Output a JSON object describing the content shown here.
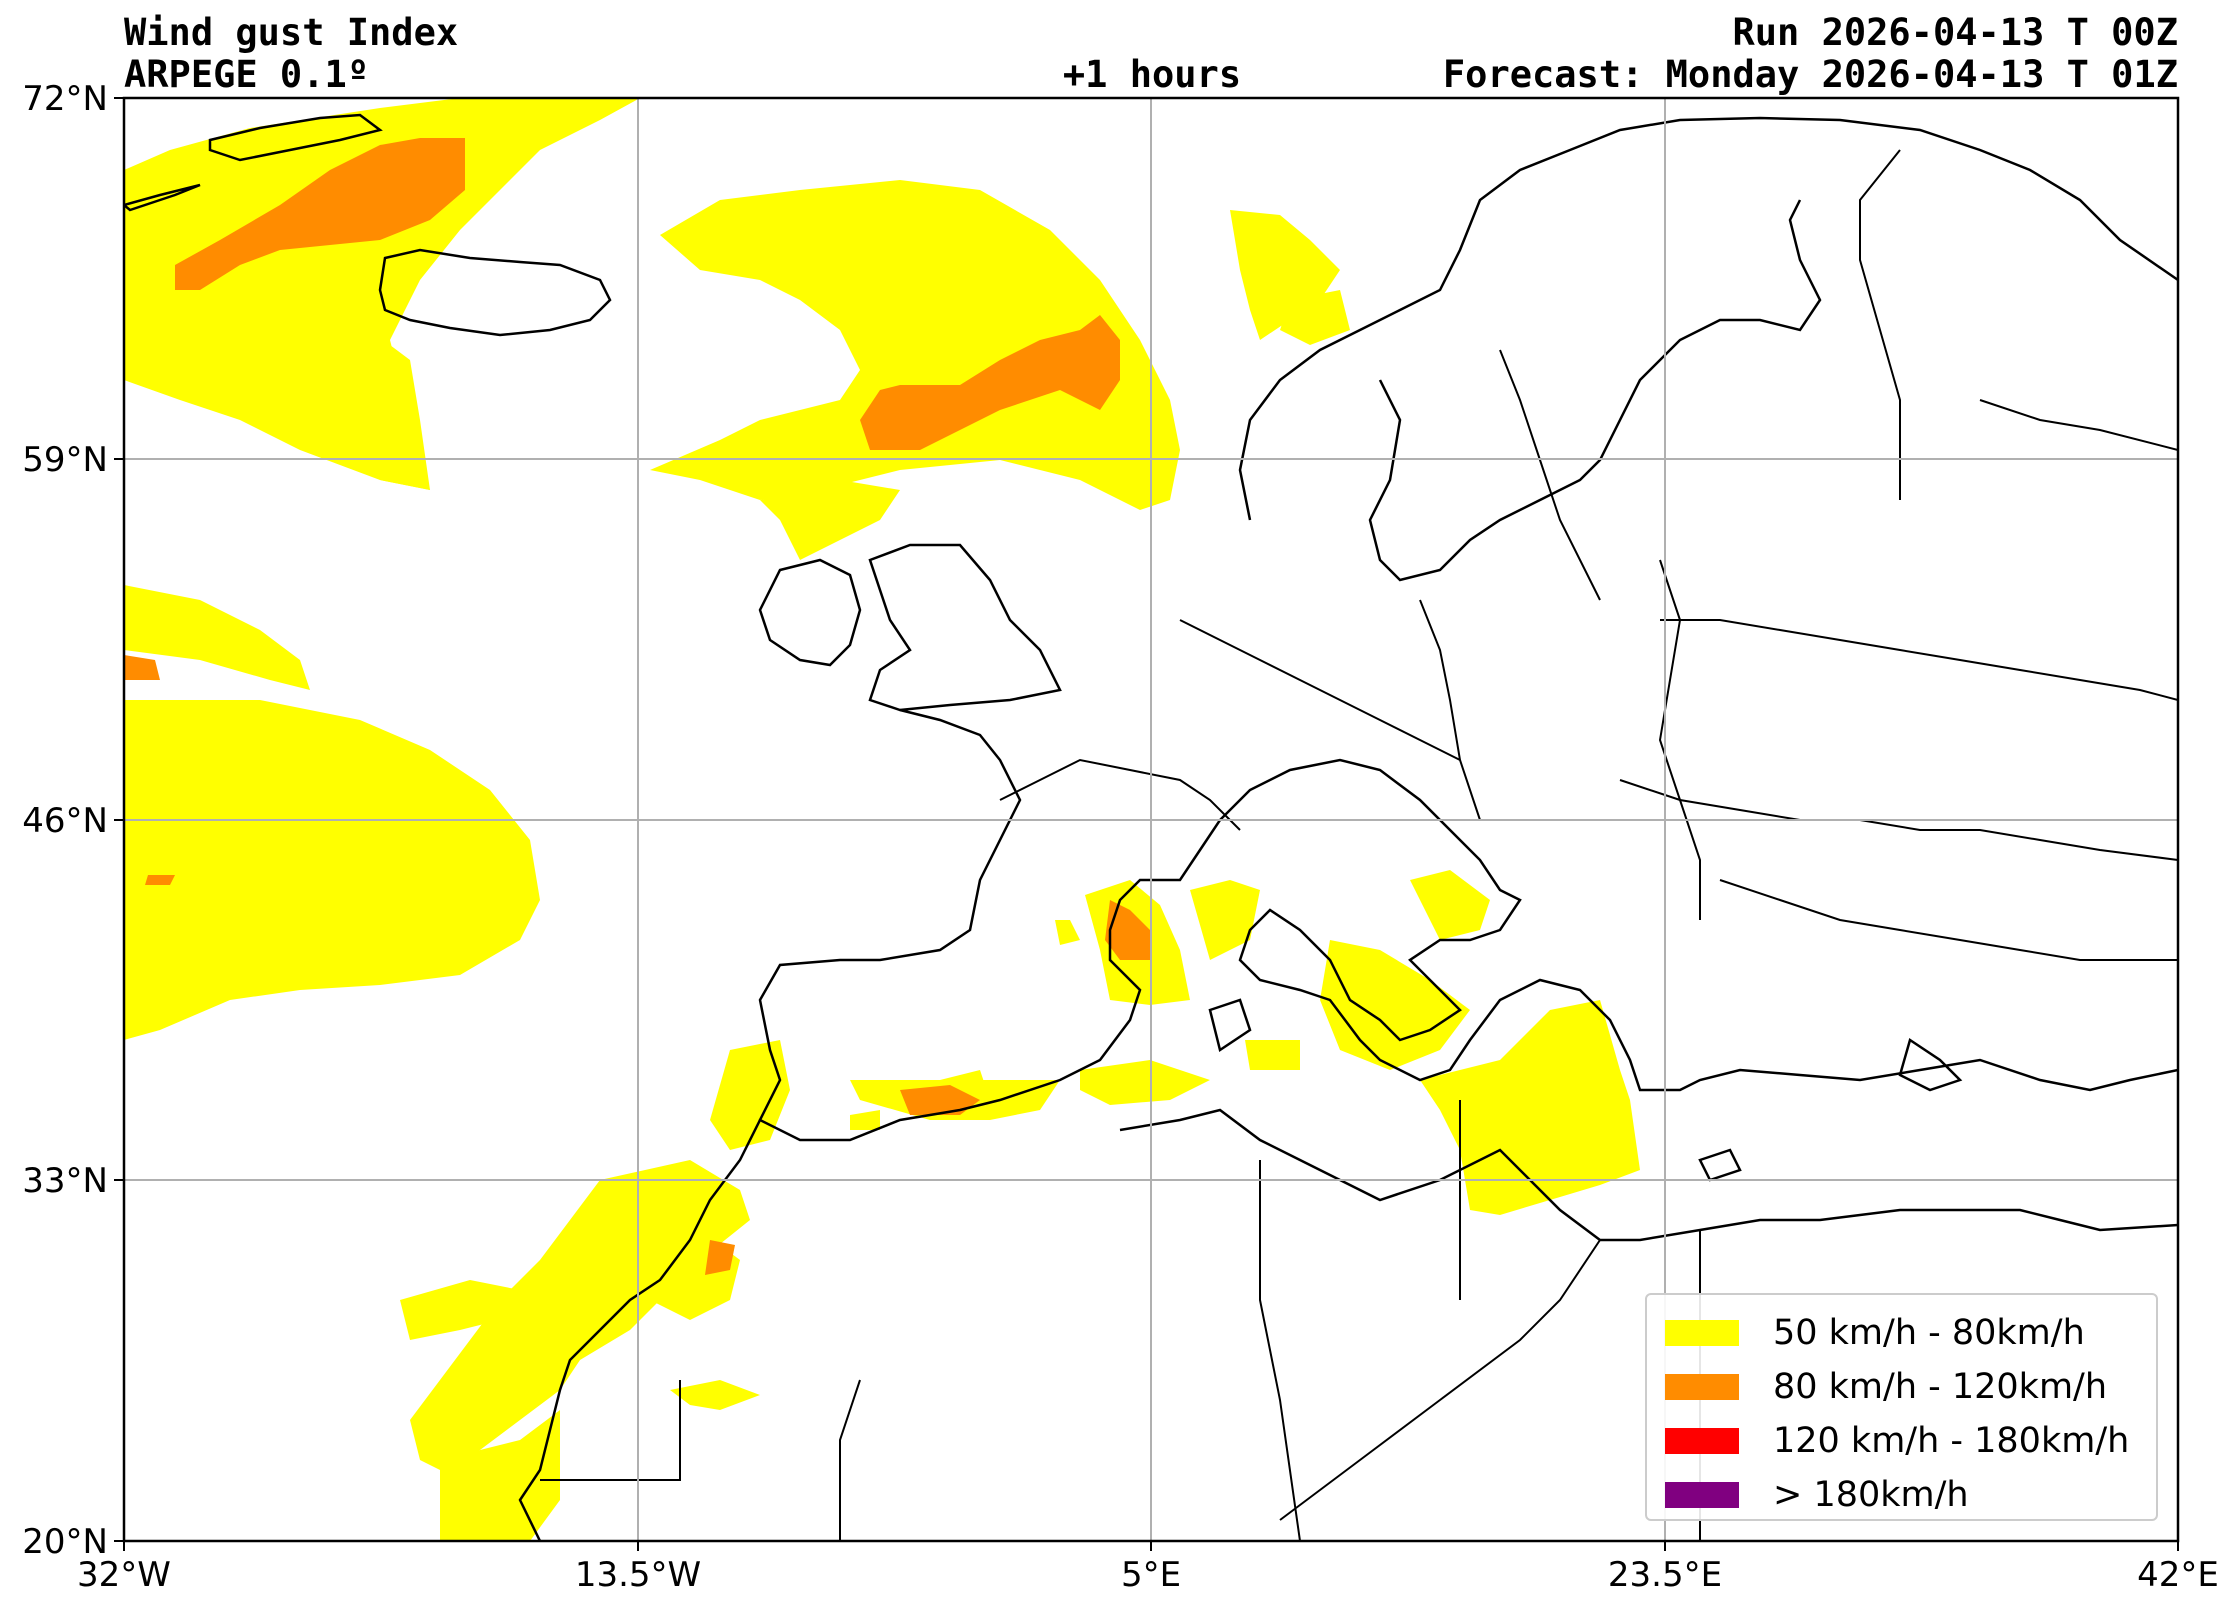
{
  "header": {
    "title": "Wind gust Index",
    "model": "ARPEGE 0.1º",
    "lead": "+1 hours",
    "run": "Run 2026-04-13 T 00Z",
    "forecast": "Forecast: Monday 2026-04-13 T 01Z"
  },
  "map": {
    "lat_range": [
      20,
      72
    ],
    "lon_range": [
      -32,
      42
    ],
    "lat_ticks": [
      "72°N",
      "59°N",
      "46°N",
      "33°N",
      "20°N"
    ],
    "lon_ticks": [
      "32°W",
      "13.5°W",
      "5°E",
      "23.5°E",
      "42°E"
    ],
    "grid": true,
    "colors": {
      "level1": "#ffff00",
      "level2": "#ff8c00",
      "level3": "#ff0000",
      "level4": "#800080",
      "coast": "#000000",
      "grid": "#b0b0b0"
    }
  },
  "legend": {
    "position": "lower-right",
    "items": [
      {
        "label": "50 km/h - 80km/h",
        "color": "#ffff00"
      },
      {
        "label": "80 km/h - 120km/h",
        "color": "#ff8c00"
      },
      {
        "label": "120 km/h - 180km/h",
        "color": "#ff0000"
      },
      {
        "label": "> 180km/h",
        "color": "#800080"
      }
    ]
  }
}
